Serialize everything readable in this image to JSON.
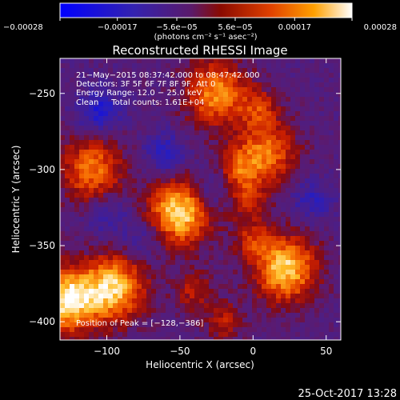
{
  "chart_data": {
    "type": "heatmap",
    "title": "Reconstructed RHESSI Image",
    "xlabel": "Heliocentric X (arcsec)",
    "ylabel": "Heliocentric Y (arcsec)",
    "xlim": [
      -132,
      60
    ],
    "ylim": [
      -412,
      -227
    ],
    "x_ticks": [
      -100,
      -50,
      0,
      50
    ],
    "y_ticks": [
      -250,
      -300,
      -350,
      -400
    ],
    "x_tick_labels": [
      "−100",
      "−50",
      "0",
      "50"
    ],
    "y_tick_labels": [
      "−250",
      "−300",
      "−350",
      "−400"
    ],
    "colorbar": {
      "range": [
        -0.00028,
        0.00028
      ],
      "tick_labels": [
        "−0.00028",
        "−0.00017",
        "−5.6e−05",
        "5.6e−05",
        "0.00017",
        "0.00028"
      ],
      "tick_values": [
        -0.00028,
        -0.00017,
        -5.6e-05,
        5.6e-05,
        0.00017,
        0.00028
      ],
      "units": "(photons cm⁻² s⁻¹ asec⁻²)"
    },
    "annotations": [
      "21−May−2015 08:37:42.000 to 08:47:42.000",
      "Detectors: 3F 5F 6F 7F 8F 9F, Att 0",
      "Energy Range: 12.0 − 25.0 keV",
      "Clean     Total counts: 1.61E+04"
    ],
    "peak_label": "Position of Peak = [−128,−386]",
    "peak": [
      -128,
      -386
    ],
    "sources": [
      {
        "x": -50,
        "y": -328,
        "value": 0.00028
      },
      {
        "x": 22,
        "y": -365,
        "value": 0.00026
      },
      {
        "x": -110,
        "y": -300,
        "value": 0.00018
      },
      {
        "x": -95,
        "y": -378,
        "value": 0.00025
      },
      {
        "x": -128,
        "y": -386,
        "value": 0.00028
      },
      {
        "x": -25,
        "y": -250,
        "value": 0.0002
      },
      {
        "x": 8,
        "y": -290,
        "value": 0.00018
      }
    ]
  },
  "footer": {
    "timestamp": "25-Oct-2017 13:28"
  }
}
